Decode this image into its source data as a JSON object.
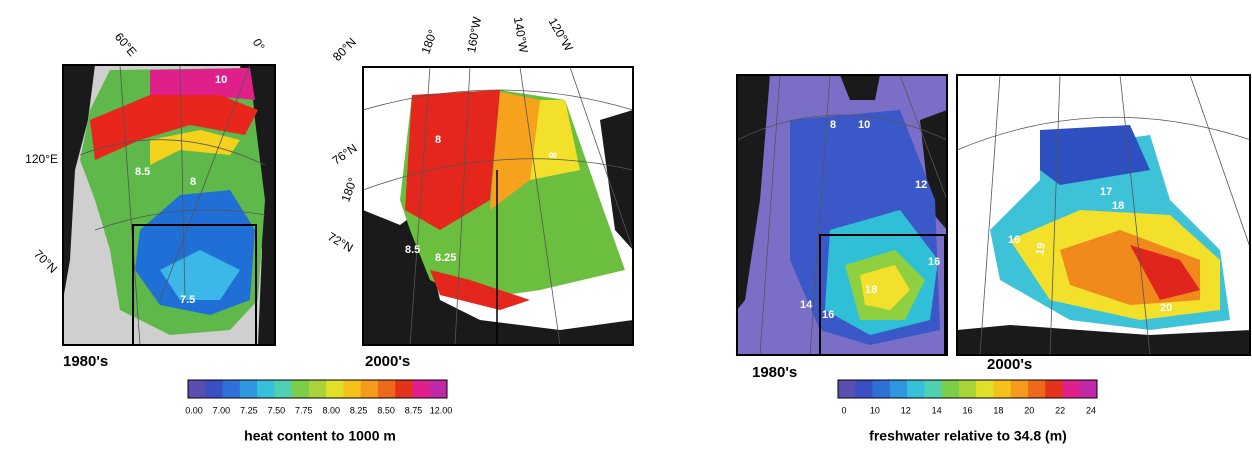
{
  "panels": [
    {
      "period": "1980's",
      "map_labels": [
        "60°E",
        "0°",
        "120°E",
        "70°N"
      ],
      "contour_labels": [
        "10",
        "8.5",
        "8",
        "7.5"
      ]
    },
    {
      "period": "2000's",
      "map_labels": [
        "80°N",
        "180°",
        "160°W",
        "140°W",
        "120°W",
        "76°N",
        "180°",
        "72°N"
      ],
      "contour_labels": [
        "8",
        "8",
        "8.5",
        "8.25"
      ]
    },
    {
      "period": "1980's",
      "map_labels": [],
      "contour_labels": [
        "8",
        "10",
        "12",
        "16",
        "14",
        "16",
        "18"
      ]
    },
    {
      "period": "2000's",
      "map_labels": [],
      "contour_labels": [
        "17",
        "18",
        "16",
        "19",
        "20"
      ]
    }
  ],
  "colorbars": [
    {
      "ticks": [
        "0.00",
        "7.00",
        "7.25",
        "7.50",
        "7.75",
        "8.00",
        "8.25",
        "8.50",
        "8.75",
        "12.00"
      ],
      "label": "heat content to 1000 m"
    },
    {
      "ticks": [
        "0",
        "10",
        "12",
        "14",
        "16",
        "18",
        "20",
        "22",
        "24"
      ],
      "label": "freshwater relative to 34.8 (m)"
    }
  ]
}
